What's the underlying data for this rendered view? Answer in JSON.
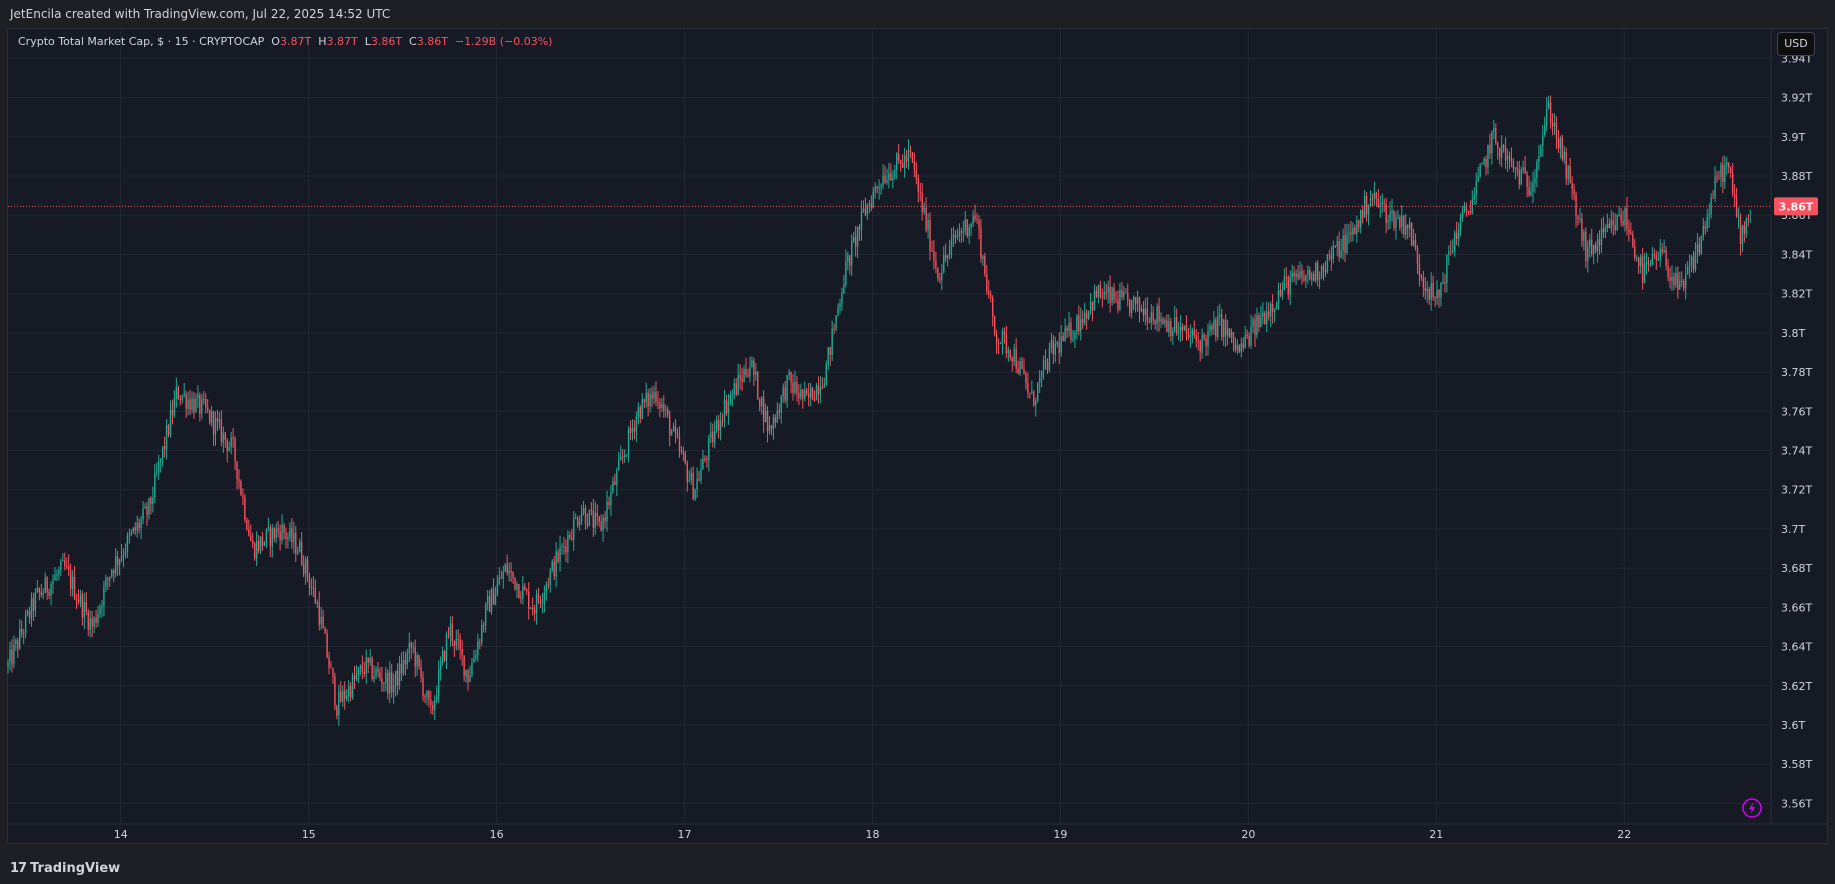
{
  "banner": {
    "text": "JetEncila created with TradingView.com, Jul 22, 2025 14:52 UTC"
  },
  "legend": {
    "title": "Crypto Total Market Cap, $ · 15 · CRYPTOCAP",
    "open_label": "O",
    "open": "3.87T",
    "high_label": "H",
    "high": "3.87T",
    "low_label": "L",
    "low": "3.86T",
    "close_label": "C",
    "close": "3.86T",
    "change": "−1.29B (−0.03%)"
  },
  "currency_button": "USD",
  "last_price_label": "3.86T",
  "footer": {
    "brand": "TradingView",
    "mark": "17"
  },
  "colors": {
    "up": "#22ab94",
    "down": "#f7525f",
    "background": "#161a25",
    "grid": "#232733",
    "text": "#d1d4dc"
  },
  "icons": {
    "flash": "lightning-icon"
  },
  "chart_data": {
    "type": "candlestick",
    "symbol": "CRYPTOCAP",
    "interval": "15",
    "unit": "T",
    "ylim": [
      3.55,
      3.955
    ],
    "y_ticks": [
      "3.94T",
      "3.92T",
      "3.9T",
      "3.88T",
      "3.86T",
      "3.84T",
      "3.82T",
      "3.8T",
      "3.78T",
      "3.76T",
      "3.74T",
      "3.72T",
      "3.7T",
      "3.68T",
      "3.66T",
      "3.64T",
      "3.62T",
      "3.6T",
      "3.58T",
      "3.56T"
    ],
    "y_tick_values": [
      3.94,
      3.92,
      3.9,
      3.88,
      3.86,
      3.84,
      3.82,
      3.8,
      3.78,
      3.76,
      3.74,
      3.72,
      3.7,
      3.68,
      3.66,
      3.64,
      3.62,
      3.6,
      3.58,
      3.56
    ],
    "x_ticks": [
      "14",
      "15",
      "16",
      "17",
      "18",
      "19",
      "20",
      "21",
      "22"
    ],
    "x_tick_days": [
      14,
      15,
      16,
      17,
      18,
      19,
      20,
      21,
      22
    ],
    "x_range_days": [
      13.4,
      22.68
    ],
    "last_price": 3.8645,
    "close_path": [
      [
        13.4,
        3.63
      ],
      [
        13.55,
        3.665
      ],
      [
        13.7,
        3.68
      ],
      [
        13.85,
        3.65
      ],
      [
        13.95,
        3.68
      ],
      [
        14.15,
        3.71
      ],
      [
        14.3,
        3.77
      ],
      [
        14.45,
        3.76
      ],
      [
        14.6,
        3.74
      ],
      [
        14.7,
        3.69
      ],
      [
        14.85,
        3.7
      ],
      [
        14.95,
        3.69
      ],
      [
        15.05,
        3.66
      ],
      [
        15.15,
        3.61
      ],
      [
        15.3,
        3.63
      ],
      [
        15.45,
        3.62
      ],
      [
        15.55,
        3.64
      ],
      [
        15.65,
        3.605
      ],
      [
        15.75,
        3.65
      ],
      [
        15.85,
        3.625
      ],
      [
        15.95,
        3.66
      ],
      [
        16.05,
        3.68
      ],
      [
        16.2,
        3.66
      ],
      [
        16.35,
        3.69
      ],
      [
        16.45,
        3.71
      ],
      [
        16.55,
        3.7
      ],
      [
        16.65,
        3.73
      ],
      [
        16.75,
        3.76
      ],
      [
        16.85,
        3.77
      ],
      [
        16.95,
        3.745
      ],
      [
        17.05,
        3.72
      ],
      [
        17.2,
        3.76
      ],
      [
        17.35,
        3.785
      ],
      [
        17.45,
        3.75
      ],
      [
        17.55,
        3.775
      ],
      [
        17.65,
        3.765
      ],
      [
        17.75,
        3.78
      ],
      [
        17.85,
        3.83
      ],
      [
        17.95,
        3.86
      ],
      [
        18.05,
        3.88
      ],
      [
        18.2,
        3.89
      ],
      [
        18.35,
        3.83
      ],
      [
        18.45,
        3.85
      ],
      [
        18.55,
        3.86
      ],
      [
        18.65,
        3.8
      ],
      [
        18.75,
        3.79
      ],
      [
        18.85,
        3.765
      ],
      [
        18.95,
        3.79
      ],
      [
        19.05,
        3.8
      ],
      [
        19.2,
        3.82
      ],
      [
        19.35,
        3.815
      ],
      [
        19.5,
        3.81
      ],
      [
        19.65,
        3.8
      ],
      [
        19.75,
        3.795
      ],
      [
        19.85,
        3.805
      ],
      [
        19.95,
        3.79
      ],
      [
        20.05,
        3.805
      ],
      [
        20.2,
        3.825
      ],
      [
        20.35,
        3.83
      ],
      [
        20.45,
        3.84
      ],
      [
        20.55,
        3.85
      ],
      [
        20.65,
        3.87
      ],
      [
        20.75,
        3.86
      ],
      [
        20.85,
        3.855
      ],
      [
        20.92,
        3.83
      ],
      [
        21.0,
        3.815
      ],
      [
        21.1,
        3.85
      ],
      [
        21.2,
        3.87
      ],
      [
        21.3,
        3.9
      ],
      [
        21.4,
        3.885
      ],
      [
        21.5,
        3.875
      ],
      [
        21.6,
        3.915
      ],
      [
        21.7,
        3.88
      ],
      [
        21.8,
        3.84
      ],
      [
        21.9,
        3.85
      ],
      [
        22.0,
        3.86
      ],
      [
        22.1,
        3.83
      ],
      [
        22.2,
        3.84
      ],
      [
        22.3,
        3.82
      ],
      [
        22.4,
        3.845
      ],
      [
        22.5,
        3.88
      ],
      [
        22.55,
        3.885
      ],
      [
        22.62,
        3.85
      ],
      [
        22.68,
        3.8645
      ]
    ]
  }
}
